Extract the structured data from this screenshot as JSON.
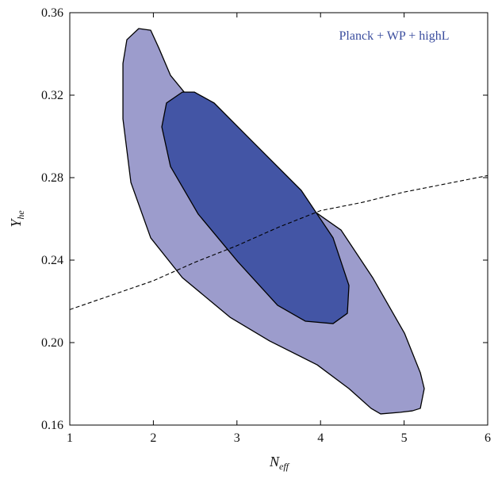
{
  "chart_data": {
    "type": "contour",
    "legend": "Planck + WP + highL",
    "legend_color": "#3a4d9e",
    "xlabel": {
      "main": "N",
      "sub": "eff"
    },
    "ylabel": {
      "main": "Y",
      "sub": "he"
    },
    "xlim": [
      1,
      6
    ],
    "ylim": [
      0.16,
      0.36
    ],
    "xticks": [
      1,
      2,
      3,
      4,
      5,
      6
    ],
    "yticks": [
      0.16,
      {
        "value": 0.2,
        "label": "0.20"
      },
      0.24,
      0.28,
      0.32,
      0.36
    ],
    "series": [
      {
        "kind": "region",
        "color": "#9c9ccc",
        "x": [
          1.825,
          1.968,
          2.063,
          2.205,
          2.632,
          3.201,
          3.77,
          4.245,
          4.624,
          5.004,
          5.194,
          5.241,
          5.194,
          5.099,
          4.956,
          4.719,
          4.605,
          4.34,
          3.96,
          3.391,
          2.917,
          2.347,
          1.968,
          1.731,
          1.636,
          1.636,
          1.683
        ],
        "values": [
          0.3523,
          0.3515,
          0.3431,
          0.3296,
          0.3085,
          0.2854,
          0.2681,
          0.2546,
          0.2315,
          0.2046,
          0.1854,
          0.1777,
          0.1681,
          0.1669,
          0.1662,
          0.1654,
          0.1681,
          0.1777,
          0.1892,
          0.2008,
          0.2123,
          0.2315,
          0.2508,
          0.2777,
          0.3085,
          0.3354,
          0.3469
        ]
      },
      {
        "kind": "region",
        "color": "#4355a5",
        "x": [
          2.347,
          2.157,
          2.101,
          2.205,
          2.537,
          3.011,
          3.486,
          3.818,
          4.15,
          4.321,
          4.34,
          4.15,
          3.77,
          3.201,
          2.727,
          2.49
        ],
        "values": [
          0.3215,
          0.3162,
          0.3046,
          0.2854,
          0.2623,
          0.2392,
          0.2181,
          0.2104,
          0.2092,
          0.2142,
          0.2277,
          0.2508,
          0.2738,
          0.2969,
          0.3162,
          0.3215
        ]
      },
      {
        "kind": "dashed",
        "color": "#000000",
        "x": [
          1,
          1.5,
          2,
          2.5,
          3,
          3.5,
          4,
          4.5,
          5,
          5.5,
          6
        ],
        "values": [
          0.216,
          0.223,
          0.23,
          0.239,
          0.247,
          0.256,
          0.264,
          0.268,
          0.273,
          0.277,
          0.281
        ]
      }
    ]
  }
}
